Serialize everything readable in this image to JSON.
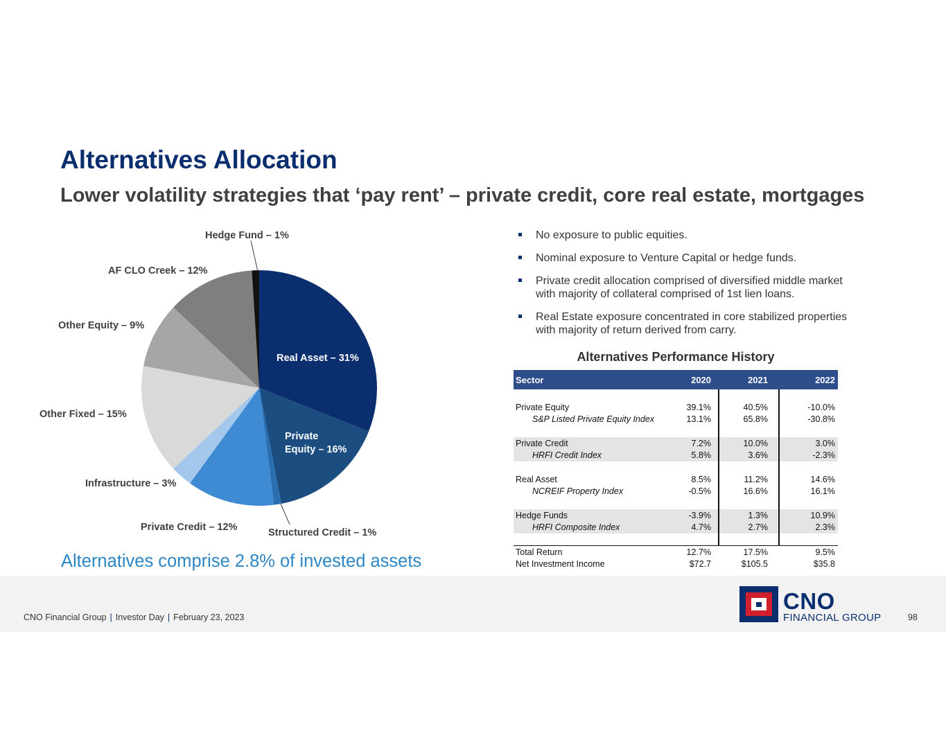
{
  "title": "Alternatives Allocation",
  "subtitle": "Lower volatility strategies that ‘pay rent’ – private credit, core real estate, mortgages",
  "chart_data": {
    "type": "pie",
    "title": "",
    "slices": [
      {
        "label": "Real Asset – 31%",
        "name": "Real Asset",
        "value": 31,
        "color": "#0b2f6e"
      },
      {
        "label": "Private\nEquity – 16%",
        "name": "Private Equity",
        "value": 16,
        "color": "#1c4d80"
      },
      {
        "label": "Structured Credit – 1%",
        "name": "Structured Credit",
        "value": 1,
        "color": "#2a6fb0"
      },
      {
        "label": "Private Credit – 12%",
        "name": "Private Credit",
        "value": 12,
        "color": "#3e8bd3"
      },
      {
        "label": "Infrastructure – 3%",
        "name": "Infrastructure",
        "value": 3,
        "color": "#a4c8eb"
      },
      {
        "label": "Other Fixed – 15%",
        "name": "Other Fixed",
        "value": 15,
        "color": "#d9d9d9"
      },
      {
        "label": "Other Equity – 9%",
        "name": "Other Equity",
        "value": 9,
        "color": "#a6a6a6"
      },
      {
        "label": "AF CLO Creek – 12%",
        "name": "AF CLO Creek",
        "value": 12,
        "color": "#7f7f7f"
      },
      {
        "label": "Hedge Fund – 1%",
        "name": "Hedge Fund",
        "value": 1,
        "color": "#111111"
      }
    ]
  },
  "callout": "Alternatives comprise 2.8% of invested assets",
  "bullets": [
    "No exposure to public equities.",
    "Nominal exposure to Venture Capital or hedge funds.",
    "Private credit allocation comprised of diversified middle market with majority of collateral comprised of 1st lien loans.",
    "Real Estate exposure concentrated in core stabilized properties with majority of return derived from carry."
  ],
  "performance": {
    "title": "Alternatives Performance History",
    "headers": [
      "Sector",
      "2020",
      "2021",
      "2022"
    ],
    "groups": [
      {
        "sector": [
          "Private Equity",
          "39.1%",
          "40.5%",
          "-10.0%"
        ],
        "index": [
          "S&P Listed Private Equity Index",
          "13.1%",
          "65.8%",
          "-30.8%"
        ]
      },
      {
        "sector": [
          "Private Credit",
          "7.2%",
          "10.0%",
          "3.0%"
        ],
        "index": [
          "HRFI Credit Index",
          "5.8%",
          "3.6%",
          "-2.3%"
        ]
      },
      {
        "sector": [
          "Real Asset",
          "8.5%",
          "11.2%",
          "14.6%"
        ],
        "index": [
          "NCREIF Property Index",
          "-0.5%",
          "16.6%",
          "16.1%"
        ]
      },
      {
        "sector": [
          "Hedge Funds",
          "-3.9%",
          "1.3%",
          "10.9%"
        ],
        "index": [
          "HRFI Composite Index",
          "4.7%",
          "2.7%",
          "2.3%"
        ]
      }
    ],
    "totals": [
      [
        "Total Return",
        "12.7%",
        "17.5%",
        "9.5%"
      ],
      [
        "Net Investment Income",
        "$72.7",
        "$105.5",
        "$35.8"
      ]
    ]
  },
  "footer": {
    "company": "CNO Financial Group",
    "event": "Investor Day",
    "date": "February 23, 2023",
    "separator": "|",
    "page": "98"
  },
  "logo": {
    "name": "CNO",
    "sub": "FINANCIAL GROUP"
  }
}
